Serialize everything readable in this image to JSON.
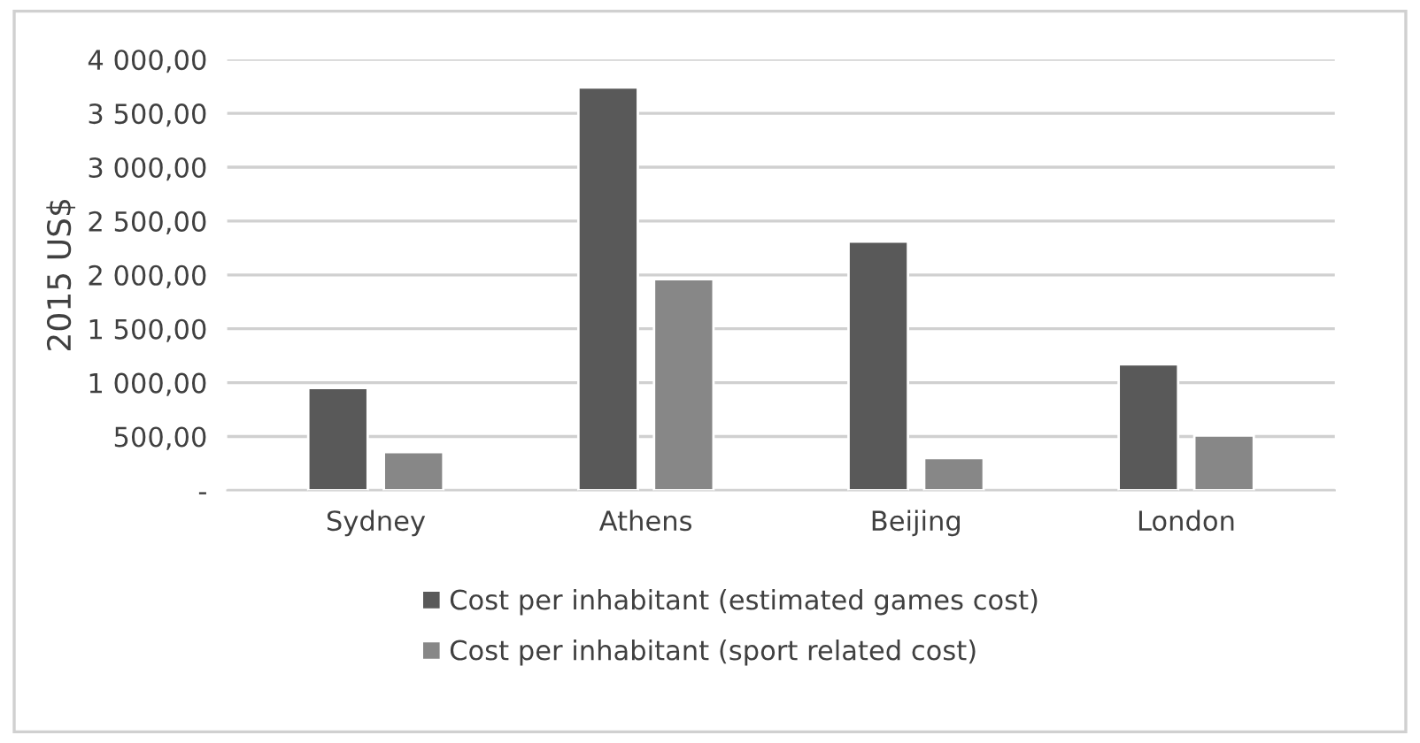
{
  "chart_data": {
    "type": "bar",
    "ylabel": "2015 US$",
    "categories": [
      "Sydney",
      "Athens",
      "Beijing",
      "London"
    ],
    "series": [
      {
        "name": "Cost per inhabitant (estimated games cost)",
        "color": "#595959",
        "values": [
          950,
          3740,
          2310,
          1170
        ]
      },
      {
        "name": "Cost per inhabitant (sport related cost)",
        "color": "#878787",
        "values": [
          355,
          1960,
          300,
          510
        ]
      }
    ],
    "ylim": [
      0,
      4000
    ],
    "yticks": [
      {
        "value": 0,
        "label": "-"
      },
      {
        "value": 500,
        "label": "500,00"
      },
      {
        "value": 1000,
        "label": "1 000,00"
      },
      {
        "value": 1500,
        "label": "1 500,00"
      },
      {
        "value": 2000,
        "label": "2 000,00"
      },
      {
        "value": 2500,
        "label": "2 500,00"
      },
      {
        "value": 3000,
        "label": "3 000,00"
      },
      {
        "value": 3500,
        "label": "3 500,00"
      },
      {
        "value": 4000,
        "label": "4 000,00"
      }
    ],
    "grid": "y",
    "legend": "bottom"
  }
}
